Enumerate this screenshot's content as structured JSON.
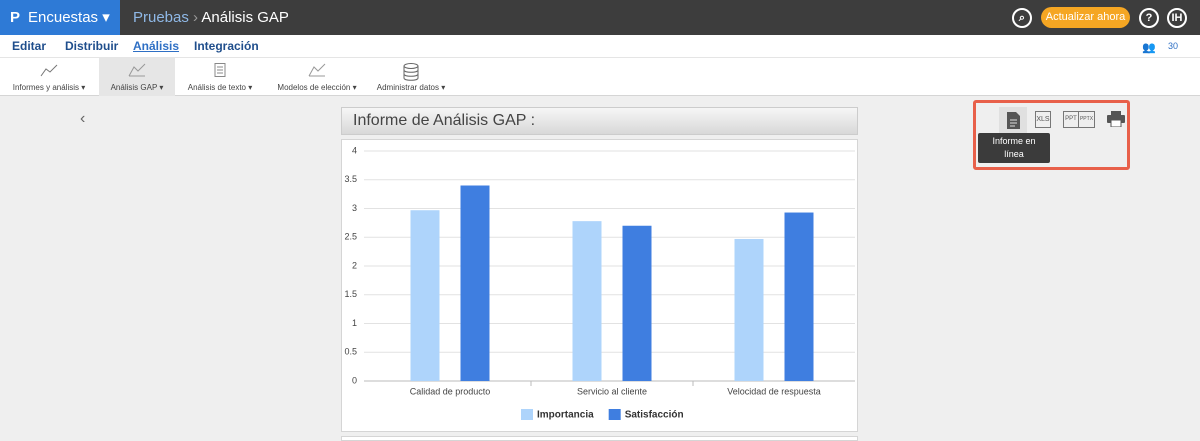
{
  "header": {
    "product": "Encuestas",
    "breadcrumb": [
      "Pruebas",
      "Análisis GAP"
    ],
    "upgrade": "Actualizar ahora",
    "help": "?",
    "user": "IH"
  },
  "tabs": [
    "Editar",
    "Distribuir",
    "Análisis",
    "Integración"
  ],
  "users": "30",
  "toolbar": [
    "Informes y análisis",
    "Análisis GAP",
    "Análisis de texto",
    "Modelos de elección",
    "Administrar datos"
  ],
  "report": {
    "title": "Informe de Análisis GAP :"
  },
  "export": {
    "formats": [
      "XLS",
      "PPT",
      "PPTX"
    ],
    "tooltip": "Informe en línea"
  },
  "chart_data": {
    "type": "bar",
    "categories": [
      "Calidad de producto",
      "Servicio al cliente",
      "Velocidad de respuesta"
    ],
    "series": [
      {
        "name": "Importancia",
        "color": "#aed4fb",
        "values": [
          2.97,
          2.78,
          2.47
        ]
      },
      {
        "name": "Satisfacción",
        "color": "#3f7ee0",
        "values": [
          3.4,
          2.7,
          2.93
        ]
      }
    ],
    "ylim": [
      0,
      4
    ],
    "yticks": [
      0,
      0.5,
      1,
      1.5,
      2,
      2.5,
      3,
      3.5,
      4
    ],
    "grid": true
  }
}
